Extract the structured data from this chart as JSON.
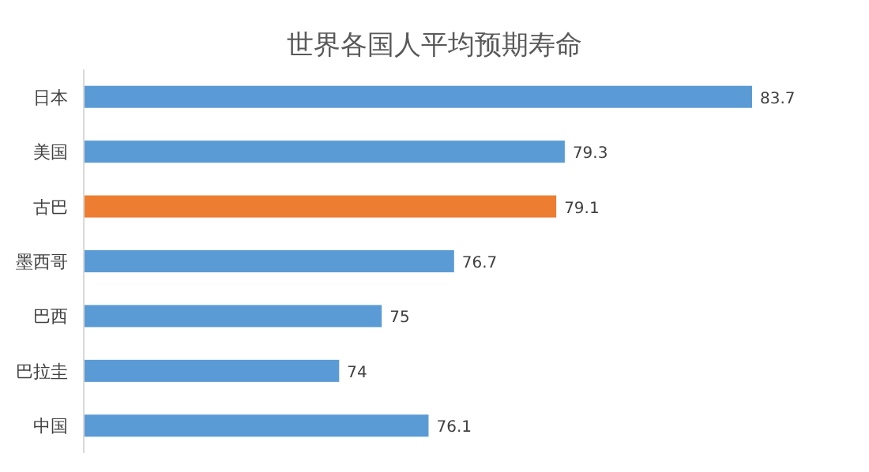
{
  "chart_data": {
    "type": "bar",
    "orientation": "horizontal",
    "title": "世界各国人平均预期寿命",
    "categories": [
      "日本",
      "美国",
      "古巴",
      "墨西哥",
      "巴西",
      "巴拉圭",
      "中国"
    ],
    "values": [
      83.7,
      79.3,
      79.1,
      76.7,
      75,
      74,
      76.1
    ],
    "colors": [
      "#5b9bd5",
      "#5b9bd5",
      "#ed7d31",
      "#5b9bd5",
      "#5b9bd5",
      "#5b9bd5",
      "#5b9bd5"
    ],
    "xlim": [
      68,
      83.7
    ],
    "data_labels": true,
    "tick_labels": "y"
  }
}
